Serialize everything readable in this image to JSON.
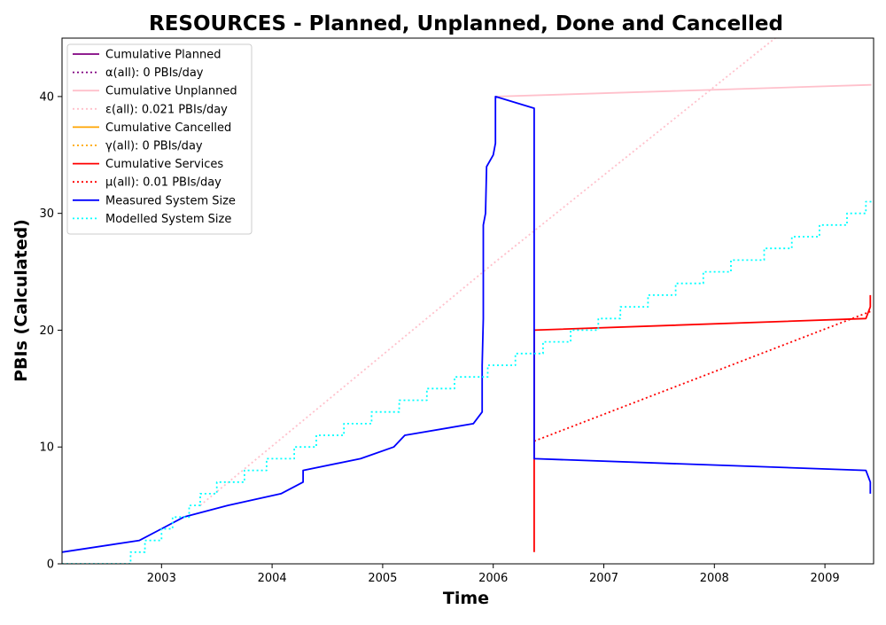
{
  "chart_data": {
    "type": "line",
    "title": "RESOURCES - Planned, Unplanned, Done  and Cancelled",
    "xlabel": "Time",
    "ylabel": "PBIs (Calculated)",
    "xlim": [
      2002.1,
      2009.44
    ],
    "ylim": [
      0,
      45
    ],
    "x_ticks": [
      2003,
      2004,
      2005,
      2006,
      2007,
      2008,
      2009
    ],
    "y_ticks": [
      0,
      10,
      20,
      30,
      40
    ],
    "legend_position": "upper-left",
    "grid": false,
    "series": [
      {
        "name": "Cumulative Planned",
        "color": "#800080",
        "style": "solid",
        "points": []
      },
      {
        "name": "α(all): 0 PBIs/day",
        "color": "#800080",
        "style": "dotted",
        "points": []
      },
      {
        "name": "Cumulative Unplanned",
        "color": "#FFC0CB",
        "style": "solid",
        "points": [
          [
            2006.03,
            40.0
          ],
          [
            2009.42,
            41.0
          ]
        ]
      },
      {
        "name": "ε(all): 0.021 PBIs/day",
        "color": "#FFC0CB",
        "style": "dotted",
        "points": [
          [
            2003.35,
            5.0
          ],
          [
            2006.0,
            25.7
          ],
          [
            2008.55,
            45.0
          ]
        ]
      },
      {
        "name": "Cumulative Cancelled",
        "color": "#FFA500",
        "style": "solid",
        "points": []
      },
      {
        "name": "γ(all): 0 PBIs/day",
        "color": "#FFA500",
        "style": "dotted",
        "points": []
      },
      {
        "name": "Cumulative Services",
        "color": "#FF0000",
        "style": "solid",
        "points": [
          [
            2006.37,
            1.0
          ],
          [
            2006.37,
            20.0
          ],
          [
            2009.37,
            21.0
          ],
          [
            2009.41,
            22.0
          ],
          [
            2009.41,
            23.0
          ]
        ]
      },
      {
        "name": "μ(all): 0.01 PBIs/day",
        "color": "#FF0000",
        "style": "dotted",
        "points": [
          [
            2006.37,
            10.5
          ],
          [
            2009.41,
            21.6
          ]
        ]
      },
      {
        "name": "Measured System Size",
        "color": "#0000FF",
        "style": "solid",
        "points": [
          [
            2002.1,
            1.0
          ],
          [
            2002.8,
            2.0
          ],
          [
            2003.0,
            3.0
          ],
          [
            2003.2,
            4.0
          ],
          [
            2003.6,
            5.0
          ],
          [
            2004.08,
            6.0
          ],
          [
            2004.28,
            7.0
          ],
          [
            2004.28,
            8.0
          ],
          [
            2004.8,
            9.0
          ],
          [
            2005.1,
            10.0
          ],
          [
            2005.2,
            11.0
          ],
          [
            2005.82,
            12.0
          ],
          [
            2005.9,
            13.0
          ],
          [
            2005.9,
            17.0
          ],
          [
            2005.91,
            21.0
          ],
          [
            2005.91,
            29.0
          ],
          [
            2005.93,
            30.0
          ],
          [
            2005.94,
            34.0
          ],
          [
            2006.0,
            35.0
          ],
          [
            2006.02,
            36.0
          ],
          [
            2006.02,
            40.0
          ],
          [
            2006.37,
            39.0
          ],
          [
            2006.37,
            9.0
          ],
          [
            2009.37,
            8.0
          ],
          [
            2009.41,
            7.0
          ],
          [
            2009.41,
            6.0
          ]
        ]
      },
      {
        "name": "Modelled System Size",
        "color": "#00FFFF",
        "style": "dotted",
        "points": [
          [
            2002.1,
            0.0
          ],
          [
            2002.72,
            0.0
          ],
          [
            2002.72,
            1.0
          ],
          [
            2002.85,
            1.0
          ],
          [
            2002.85,
            2.0
          ],
          [
            2003.0,
            2.0
          ],
          [
            2003.0,
            3.0
          ],
          [
            2003.1,
            3.0
          ],
          [
            2003.1,
            4.0
          ],
          [
            2003.25,
            4.0
          ],
          [
            2003.25,
            5.0
          ],
          [
            2003.35,
            5.0
          ],
          [
            2003.35,
            6.0
          ],
          [
            2003.5,
            6.0
          ],
          [
            2003.5,
            7.0
          ],
          [
            2003.75,
            7.0
          ],
          [
            2003.75,
            8.0
          ],
          [
            2003.95,
            8.0
          ],
          [
            2003.95,
            9.0
          ],
          [
            2004.2,
            9.0
          ],
          [
            2004.2,
            10.0
          ],
          [
            2004.4,
            10.0
          ],
          [
            2004.4,
            11.0
          ],
          [
            2004.65,
            11.0
          ],
          [
            2004.65,
            12.0
          ],
          [
            2004.9,
            12.0
          ],
          [
            2004.9,
            13.0
          ],
          [
            2005.15,
            13.0
          ],
          [
            2005.15,
            14.0
          ],
          [
            2005.4,
            14.0
          ],
          [
            2005.4,
            15.0
          ],
          [
            2005.65,
            15.0
          ],
          [
            2005.65,
            16.0
          ],
          [
            2005.95,
            16.0
          ],
          [
            2005.95,
            17.0
          ],
          [
            2006.2,
            17.0
          ],
          [
            2006.2,
            18.0
          ],
          [
            2006.45,
            18.0
          ],
          [
            2006.45,
            19.0
          ],
          [
            2006.7,
            19.0
          ],
          [
            2006.7,
            20.0
          ],
          [
            2006.95,
            20.0
          ],
          [
            2006.95,
            21.0
          ],
          [
            2007.15,
            21.0
          ],
          [
            2007.15,
            22.0
          ],
          [
            2007.4,
            22.0
          ],
          [
            2007.4,
            23.0
          ],
          [
            2007.65,
            23.0
          ],
          [
            2007.65,
            24.0
          ],
          [
            2007.9,
            24.0
          ],
          [
            2007.9,
            25.0
          ],
          [
            2008.15,
            25.0
          ],
          [
            2008.15,
            26.0
          ],
          [
            2008.45,
            26.0
          ],
          [
            2008.45,
            27.0
          ],
          [
            2008.7,
            27.0
          ],
          [
            2008.7,
            28.0
          ],
          [
            2008.95,
            28.0
          ],
          [
            2008.95,
            29.0
          ],
          [
            2009.2,
            29.0
          ],
          [
            2009.2,
            30.0
          ],
          [
            2009.37,
            30.0
          ],
          [
            2009.37,
            31.0
          ],
          [
            2009.42,
            31.0
          ]
        ]
      }
    ]
  }
}
